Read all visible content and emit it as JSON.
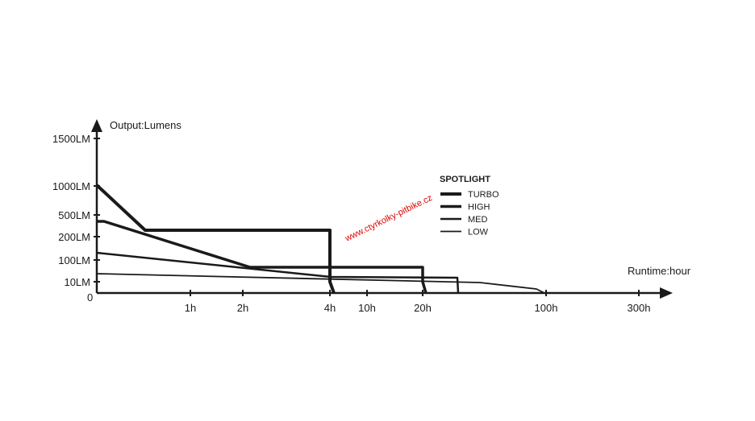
{
  "chart_data": {
    "type": "line",
    "y_axis_label": "Output:Lumens",
    "x_axis_label": "Runtime:hour",
    "origin_label": "0",
    "y_ticks": [
      "10LM",
      "100LM",
      "200LM",
      "500LM",
      "1000LM",
      "1500LM"
    ],
    "x_ticks": [
      "1h",
      "2h",
      "4h",
      "10h",
      "20h",
      "100h",
      "300h"
    ],
    "legend_title": "SPOTLIGHT",
    "watermark": "www.ctyrkolky-pitbike.cz",
    "series": [
      {
        "name": "TURBO",
        "points": [
          [
            "0",
            "1000LM"
          ],
          [
            "0.5h",
            "~350LM"
          ],
          [
            "4h",
            "~350LM"
          ],
          [
            "~4.2h",
            "0"
          ]
        ]
      },
      {
        "name": "HIGH",
        "points": [
          [
            "0",
            "~400LM"
          ],
          [
            "~2h",
            "~100LM"
          ],
          [
            "20h",
            "~100LM"
          ],
          [
            "~21h",
            "0"
          ]
        ]
      },
      {
        "name": "MED",
        "points": [
          [
            "0",
            "~150LM"
          ],
          [
            "~4h",
            "~40LM"
          ],
          [
            "~25h",
            "~40LM"
          ],
          [
            "~26h",
            "0"
          ]
        ]
      },
      {
        "name": "LOW",
        "points": [
          [
            "0",
            "~40LM"
          ],
          [
            "~30h",
            "~30LM"
          ],
          [
            "~90h",
            "~15LM"
          ],
          [
            "100h",
            "0"
          ]
        ]
      }
    ]
  }
}
